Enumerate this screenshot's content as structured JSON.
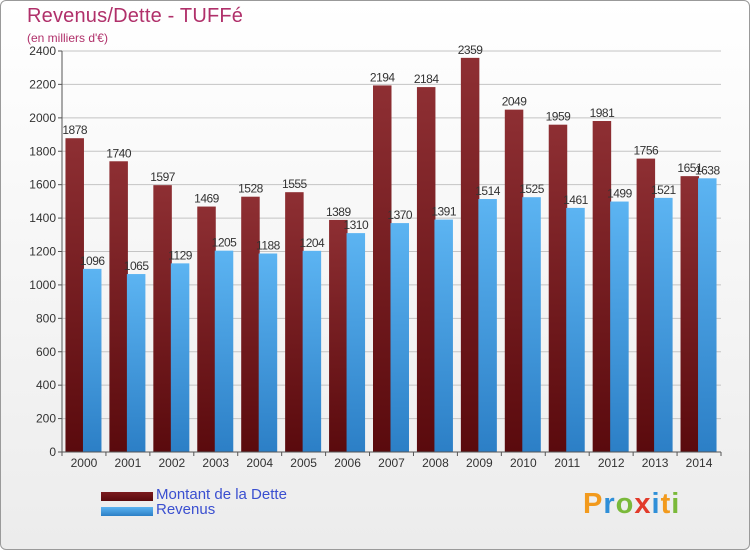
{
  "chart_data": {
    "type": "bar",
    "title": "Revenus/Dette - TUFFé",
    "subtitle": "(en milliers d'€)",
    "categories": [
      "2000",
      "2001",
      "2002",
      "2003",
      "2004",
      "2005",
      "2006",
      "2007",
      "2008",
      "2009",
      "2010",
      "2011",
      "2012",
      "2013",
      "2014"
    ],
    "series": [
      {
        "name": "Montant de la Dette",
        "color": "#7a1a1e",
        "values": [
          1878,
          1740,
          1597,
          1469,
          1528,
          1555,
          1389,
          2194,
          2184,
          2359,
          2049,
          1959,
          1981,
          1756,
          1651
        ]
      },
      {
        "name": "Revenus",
        "color": "#4aa3e6",
        "values": [
          1096,
          1065,
          1129,
          1205,
          1188,
          1204,
          1310,
          1370,
          1391,
          1514,
          1525,
          1461,
          1499,
          1521,
          1638
        ]
      }
    ],
    "ylim": [
      0,
      2400
    ],
    "yticks": [
      0,
      200,
      400,
      600,
      800,
      1000,
      1200,
      1400,
      1600,
      1800,
      2000,
      2200,
      2400
    ],
    "grid": true,
    "legend_position": "bottom-left"
  },
  "logo": {
    "text": "Proxiti",
    "letters": [
      "P",
      "r",
      "o",
      "x",
      "i",
      "t",
      "i"
    ]
  }
}
